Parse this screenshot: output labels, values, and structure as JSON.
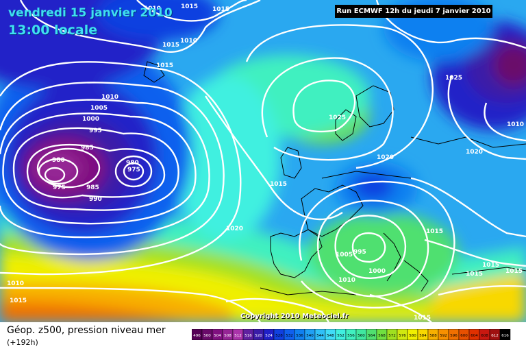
{
  "header": {
    "date": "vendredi 15 janvier 2010",
    "time": "13:00 locale",
    "run": "Run ECMWF 12h du jeudi 7 janvier 2010"
  },
  "copyright": "Copyright 2010 Meteociel.fr",
  "legend": {
    "title": "Géop. z500, pression niveau mer",
    "subtitle": "(+192h)",
    "ticks": [
      "496",
      "500",
      "504",
      "508",
      "512",
      "516",
      "520",
      "524",
      "528",
      "532",
      "536",
      "540",
      "544",
      "548",
      "552",
      "556",
      "560",
      "564",
      "568",
      "572",
      "576",
      "580",
      "584",
      "588",
      "592",
      "596",
      "600",
      "604",
      "608",
      "612",
      "616"
    ],
    "colors": [
      "#550055",
      "#6a0a6a",
      "#801080",
      "#952595",
      "#aa33aa",
      "#6020a0",
      "#3a1ca8",
      "#2020c8",
      "#1040e0",
      "#1060ee",
      "#1080f0",
      "#20a0f4",
      "#30c0f8",
      "#40dcf8",
      "#40f0e0",
      "#40f0c0",
      "#40e8a0",
      "#50e070",
      "#70e040",
      "#a0e020",
      "#d0e810",
      "#f0f000",
      "#f8d800",
      "#f8b000",
      "#f89000",
      "#f07000",
      "#e85000",
      "#e03000",
      "#c81810",
      "#a01010",
      "#000000"
    ]
  },
  "pressure_labels": [
    {
      "id": "l1010a",
      "text": "1010"
    },
    {
      "id": "l1015a",
      "text": "1015"
    },
    {
      "id": "l1015b",
      "text": "1015"
    },
    {
      "id": "l1010b",
      "text": "1010"
    },
    {
      "id": "l1015c",
      "text": "1015"
    },
    {
      "id": "l1015d",
      "text": "1015"
    },
    {
      "id": "l1010c",
      "text": "1010"
    },
    {
      "id": "l1005",
      "text": "1005"
    },
    {
      "id": "l1000",
      "text": "1000"
    },
    {
      "id": "l995",
      "text": "995"
    },
    {
      "id": "l985a",
      "text": "985"
    },
    {
      "id": "l980a",
      "text": "980"
    },
    {
      "id": "l975a",
      "text": "975"
    },
    {
      "id": "l985b",
      "text": "985"
    },
    {
      "id": "l990",
      "text": "990"
    },
    {
      "id": "l980b",
      "text": "980"
    },
    {
      "id": "l975b",
      "text": "975"
    },
    {
      "id": "l1025a",
      "text": "1025"
    },
    {
      "id": "l1025b",
      "text": "1025"
    },
    {
      "id": "l1010d",
      "text": "1010"
    },
    {
      "id": "l1020a",
      "text": "1020"
    },
    {
      "id": "l1020b",
      "text": "1020"
    },
    {
      "id": "l1015e",
      "text": "1015"
    },
    {
      "id": "l1020c",
      "text": "1020"
    },
    {
      "id": "l1015f",
      "text": "1015"
    },
    {
      "id": "l1005b",
      "text": "1005"
    },
    {
      "id": "l995b",
      "text": "995"
    },
    {
      "id": "l1010e",
      "text": "1010"
    },
    {
      "id": "l1000b",
      "text": "1000"
    },
    {
      "id": "l1015g",
      "text": "1015"
    },
    {
      "id": "l1015h",
      "text": "1015"
    },
    {
      "id": "l1015i",
      "text": "1015"
    },
    {
      "id": "l1010f",
      "text": "1010"
    },
    {
      "id": "l1015j",
      "text": "1015"
    },
    {
      "id": "l1015k",
      "text": "1015"
    }
  ]
}
